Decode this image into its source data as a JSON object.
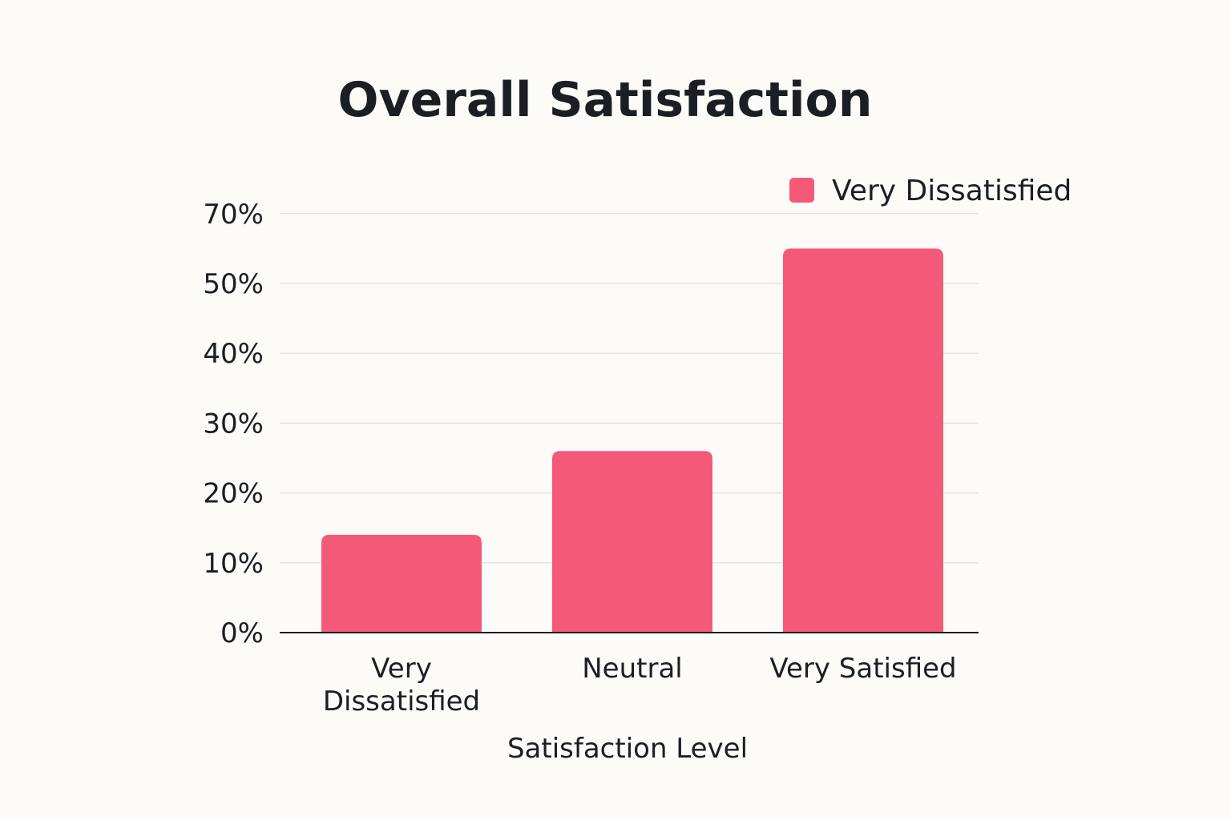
{
  "chart_data": {
    "type": "bar",
    "title": "Overall Satisfaction",
    "xlabel": "Satisfaction Level",
    "ylabel": "",
    "categories": [
      "Very Dissatisfied",
      "Neutral",
      "Very Satisfied"
    ],
    "category_lines": [
      [
        "Very",
        "Dissatisfied"
      ],
      [
        "Neutral"
      ],
      [
        "Very Satisfied"
      ]
    ],
    "series": [
      {
        "name": "Very Dissatisfied",
        "values": [
          14,
          26,
          55
        ]
      }
    ],
    "y_ticks": [
      0,
      10,
      20,
      30,
      40,
      50,
      70
    ],
    "y_tick_labels": [
      "0%",
      "10%",
      "20%",
      "30%",
      "40%",
      "50%",
      "70%"
    ],
    "ylim": [
      0,
      60
    ],
    "grid": true,
    "legend": "top-right",
    "colors": {
      "bar": "#f45a78",
      "grid": "#dcdcdc",
      "axis": "#1b1f24",
      "text": "#1b1f24"
    }
  }
}
